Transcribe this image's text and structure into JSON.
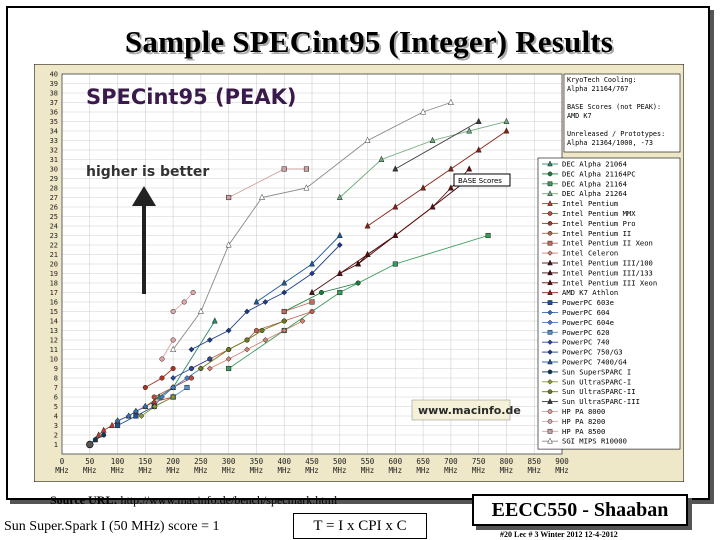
{
  "slide": {
    "title": "Sample SPECint95 (Integer) Results",
    "source_label": "Source URL:",
    "source_url": "http://www.macinfo.de/bench/specmark.html",
    "footnote_left": "Sun Super.Spark I (50 MHz)  score = 1",
    "formula": "T =  I  x  CPI   x C",
    "course": "EECC550 - Shaaban",
    "course_meta": "#20   Lec # 3    Winter 2012   12-4-2012"
  },
  "chart_data": {
    "type": "scatter",
    "title": "SPECint95 (PEAK)",
    "annotation": "higher is better",
    "watermark": "www.macinfo.de",
    "base_scores_label": "BASE Scores",
    "xlim": [
      0,
      900
    ],
    "ylim": [
      0,
      40
    ],
    "x_ticks": [
      0,
      50,
      100,
      150,
      200,
      250,
      300,
      350,
      400,
      450,
      500,
      550,
      600,
      650,
      700,
      750,
      800,
      850,
      900
    ],
    "x_tick_labels": [
      "0\nMHz",
      "50\nMHz",
      "100\nMHz",
      "150\nMHz",
      "200\nMHz",
      "250\nMHz",
      "300\nMHz",
      "350\nMHz",
      "400\nMHz",
      "450\nMHz",
      "500\nMHz",
      "550\nMHz",
      "600\nMHz",
      "650\nMHz",
      "700\nMHz",
      "750\nMHz",
      "800\nMHz",
      "850\nMHz",
      "900\nMHz"
    ],
    "y_ticks": [
      1,
      2,
      3,
      4,
      5,
      6,
      7,
      8,
      9,
      10,
      11,
      12,
      13,
      14,
      15,
      16,
      17,
      18,
      19,
      20,
      21,
      22,
      23,
      24,
      25,
      26,
      27,
      28,
      29,
      30,
      31,
      32,
      33,
      34,
      35,
      36,
      37,
      38,
      39,
      40
    ],
    "grid": true,
    "legend_placement": "right",
    "info_text": [
      "KryoTech Cooling:",
      "Alpha 21164/767",
      "",
      "BASE Scores (not PEAK):",
      "AMD K7",
      "",
      "Unreleased / Prototypes:",
      "Alpha 21364/1000, -73"
    ],
    "series": [
      {
        "name": "DEC Alpha 21064",
        "color": "#2a8a6a",
        "marker": "tri",
        "x": [
          150,
          175,
          200,
          275
        ],
        "y": [
          5,
          6,
          7,
          14
        ]
      },
      {
        "name": "DEC Alpha 21164PC",
        "color": "#1a7a3a",
        "marker": "circle",
        "x": [
          400,
          467,
          533
        ],
        "y": [
          15,
          17,
          18
        ]
      },
      {
        "name": "DEC Alpha 21164",
        "color": "#3a9a5a",
        "marker": "square",
        "x": [
          300,
          400,
          500,
          600,
          767
        ],
        "y": [
          9,
          13,
          17,
          20,
          23
        ]
      },
      {
        "name": "DEC Alpha 21264",
        "color": "#6aaa7a",
        "marker": "tri",
        "x": [
          500,
          575,
          667,
          733,
          800
        ],
        "y": [
          27,
          31,
          33,
          34,
          35
        ]
      },
      {
        "name": "Intel Pentium",
        "color": "#c03a2a",
        "marker": "tri",
        "x": [
          60,
          66,
          75,
          90,
          100,
          120,
          133,
          150,
          166,
          200
        ],
        "y": [
          1.5,
          2,
          2.5,
          3,
          3.5,
          4,
          4.5,
          5,
          5.5,
          6
        ]
      },
      {
        "name": "Intel Pentium MMX",
        "color": "#c04a3a",
        "marker": "circle",
        "x": [
          166,
          200,
          233
        ],
        "y": [
          6,
          7,
          8
        ]
      },
      {
        "name": "Intel Pentium Pro",
        "color": "#b03020",
        "marker": "circle",
        "x": [
          150,
          180,
          200
        ],
        "y": [
          7,
          8,
          9
        ]
      },
      {
        "name": "Intel Pentium II",
        "color": "#c05a4a",
        "marker": "circle",
        "x": [
          233,
          266,
          300,
          333,
          350,
          400,
          450
        ],
        "y": [
          9,
          10,
          11,
          12,
          13,
          14,
          15
        ]
      },
      {
        "name": "Intel Pentium II Xeon",
        "color": "#c06a5a",
        "marker": "square",
        "x": [
          400,
          450
        ],
        "y": [
          15,
          16
        ]
      },
      {
        "name": "Intel Celeron",
        "color": "#d08070",
        "marker": "diamond",
        "x": [
          266,
          300,
          333,
          366,
          400,
          433
        ],
        "y": [
          9,
          10,
          11,
          12,
          13,
          14
        ]
      },
      {
        "name": "Intel Pentium III/100",
        "color": "#501010",
        "marker": "tri",
        "x": [
          450,
          500,
          533,
          550,
          600
        ],
        "y": [
          17,
          19,
          20,
          21,
          23
        ]
      },
      {
        "name": "Intel Pentium III/133",
        "color": "#400808",
        "marker": "tri",
        "x": [
          533,
          600,
          667,
          733
        ],
        "y": [
          20,
          23,
          26,
          29
        ]
      },
      {
        "name": "Intel Pentium III Xeon",
        "color": "#600a0a",
        "marker": "tri",
        "x": [
          500,
          550,
          600,
          667,
          700,
          733
        ],
        "y": [
          19,
          21,
          23,
          26,
          28,
          30
        ]
      },
      {
        "name": "AMD K7 Athlon",
        "color": "#8a2010",
        "marker": "tri",
        "x": [
          550,
          600,
          650,
          700,
          750,
          800
        ],
        "y": [
          24,
          26,
          28,
          30,
          32,
          34
        ]
      },
      {
        "name": "PowerPC 603e",
        "color": "#205090",
        "marker": "square",
        "x": [
          100,
          133,
          166,
          200
        ],
        "y": [
          3,
          4,
          5,
          6
        ]
      },
      {
        "name": "PowerPC 604",
        "color": "#3070b0",
        "marker": "diamond",
        "x": [
          100,
          120,
          133,
          150
        ],
        "y": [
          3.5,
          4,
          4.5,
          5
        ]
      },
      {
        "name": "PowerPC 604e",
        "color": "#4080c0",
        "marker": "diamond",
        "x": [
          166,
          180,
          200,
          225,
          250
        ],
        "y": [
          5,
          6,
          7,
          8,
          9
        ]
      },
      {
        "name": "PowerPC 620",
        "color": "#5090c8",
        "marker": "square",
        "x": [
          200,
          225
        ],
        "y": [
          6,
          7
        ]
      },
      {
        "name": "PowerPC 740",
        "color": "#2a4aa0",
        "marker": "diamond",
        "x": [
          200,
          233,
          266
        ],
        "y": [
          8,
          9,
          10
        ]
      },
      {
        "name": "PowerPC 750/G3",
        "color": "#1a3a90",
        "marker": "diamond",
        "x": [
          233,
          266,
          300,
          333,
          366,
          400,
          450,
          500
        ],
        "y": [
          11,
          12,
          13,
          15,
          16,
          17,
          19,
          22
        ]
      },
      {
        "name": "PowerPC 7400/G4",
        "color": "#1a5a9a",
        "marker": "tri",
        "x": [
          350,
          400,
          450,
          500
        ],
        "y": [
          16,
          18,
          20,
          23
        ]
      },
      {
        "name": "Sun SuperSPARC I",
        "color": "#0a3a5a",
        "marker": "circle",
        "x": [
          50,
          60,
          75
        ],
        "y": [
          1,
          1.5,
          2
        ]
      },
      {
        "name": "Sun UltraSPARC-I",
        "color": "#8a9a2a",
        "marker": "diamond",
        "x": [
          143,
          167,
          200
        ],
        "y": [
          4,
          5,
          6
        ]
      },
      {
        "name": "Sun UltraSPARC-II",
        "color": "#6a7a1a",
        "marker": "circle",
        "x": [
          250,
          300,
          333,
          360,
          400
        ],
        "y": [
          9,
          11,
          12,
          13,
          14
        ]
      },
      {
        "name": "Sun UltraSPARC-III",
        "color": "#3a3a3a",
        "marker": "tri",
        "x": [
          600,
          750
        ],
        "y": [
          30,
          35
        ]
      },
      {
        "name": "HP PA 8000",
        "color": "#e0a0a0",
        "marker": "circle",
        "x": [
          180,
          200
        ],
        "y": [
          10,
          12
        ]
      },
      {
        "name": "HP PA 8200",
        "color": "#e0a8a8",
        "marker": "circle",
        "x": [
          200,
          220,
          236
        ],
        "y": [
          15,
          16,
          17
        ]
      },
      {
        "name": "HP PA 8500",
        "color": "#d0a0a0",
        "marker": "square",
        "x": [
          300,
          400,
          440
        ],
        "y": [
          27,
          30,
          30
        ]
      },
      {
        "name": "SGI MIPS R10000",
        "color": "#ffffff",
        "marker": "tri",
        "x": [
          200,
          250,
          300,
          360,
          440,
          550,
          650,
          700
        ],
        "y": [
          11,
          15,
          22,
          27,
          28,
          33,
          36,
          37
        ]
      }
    ]
  }
}
